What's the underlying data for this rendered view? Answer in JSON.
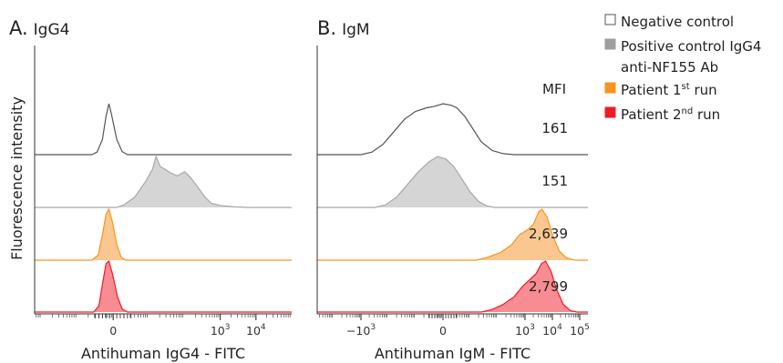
{
  "y_axis_label": "Fluorescence intensity",
  "mfi_header": "MFI",
  "legend": [
    {
      "label": "Negative control",
      "label2": "",
      "color": "#ffffff",
      "stroke": "#555555"
    },
    {
      "label": "Positive control IgG4",
      "label2": "anti-NF155 Ab",
      "color": "#9e9e9e",
      "stroke": "#9e9e9e"
    },
    {
      "label": "Patient 1",
      "sup": "st",
      "tail": " run",
      "label2": "",
      "color": "#f7941d",
      "stroke": "#f7941d"
    },
    {
      "label": "Patient 2",
      "sup": "nd",
      "tail": " run",
      "label2": "",
      "color": "#ee1c25",
      "stroke": "#ee1c25"
    }
  ],
  "chart_data": [
    {
      "type": "area",
      "panel_letter": "A.",
      "panel_title": "IgG4",
      "xlabel": "Antihuman IgG4 - FITC",
      "ylabel": "Fluorescence intensity",
      "xlim": [
        -2.2,
        5.0
      ],
      "ticks": [
        {
          "value": 0,
          "text": "0"
        },
        {
          "value": 3,
          "base": "10",
          "exp": "3"
        },
        {
          "value": 4,
          "base": "10",
          "exp": "4"
        }
      ],
      "series": [
        {
          "name": "Negative control",
          "fill": "none",
          "stroke": "#555555",
          "points": [
            [
              -2.2,
              0
            ],
            [
              -0.6,
              0
            ],
            [
              -0.45,
              0.05
            ],
            [
              -0.3,
              0.3
            ],
            [
              -0.2,
              0.75
            ],
            [
              -0.12,
              1.0
            ],
            [
              -0.05,
              0.8
            ],
            [
              0.1,
              0.3
            ],
            [
              0.25,
              0.06
            ],
            [
              0.4,
              0
            ],
            [
              5.0,
              0
            ]
          ]
        },
        {
          "name": "Positive control IgG4 anti-NF155 Ab",
          "fill": "#d3d3d3",
          "stroke": "#a8a8a8",
          "points": [
            [
              -2.2,
              0
            ],
            [
              0.1,
              0
            ],
            [
              0.3,
              0.05
            ],
            [
              0.6,
              0.2
            ],
            [
              0.9,
              0.5
            ],
            [
              1.1,
              0.75
            ],
            [
              1.2,
              1.0
            ],
            [
              1.32,
              0.8
            ],
            [
              1.45,
              0.75
            ],
            [
              1.6,
              0.68
            ],
            [
              1.8,
              0.62
            ],
            [
              2.0,
              0.7
            ],
            [
              2.15,
              0.6
            ],
            [
              2.35,
              0.42
            ],
            [
              2.55,
              0.22
            ],
            [
              2.75,
              0.08
            ],
            [
              3.0,
              0.04
            ],
            [
              3.4,
              0.01
            ],
            [
              3.8,
              0
            ],
            [
              5.0,
              0
            ]
          ]
        },
        {
          "name": "Patient 1st run",
          "fill": "#fbc48a",
          "stroke": "#f7941d",
          "points": [
            [
              -2.2,
              0
            ],
            [
              -0.6,
              0
            ],
            [
              -0.42,
              0.1
            ],
            [
              -0.3,
              0.5
            ],
            [
              -0.2,
              0.9
            ],
            [
              -0.12,
              1.0
            ],
            [
              -0.02,
              0.75
            ],
            [
              0.1,
              0.3
            ],
            [
              0.22,
              0.06
            ],
            [
              0.35,
              0
            ],
            [
              5.0,
              0
            ]
          ]
        },
        {
          "name": "Patient 2nd run",
          "fill": "#f7868c",
          "stroke": "#ee1c25",
          "points": [
            [
              -2.2,
              0
            ],
            [
              -0.55,
              0
            ],
            [
              -0.4,
              0.12
            ],
            [
              -0.3,
              0.55
            ],
            [
              -0.2,
              0.95
            ],
            [
              -0.12,
              1.0
            ],
            [
              -0.02,
              0.75
            ],
            [
              0.12,
              0.3
            ],
            [
              0.25,
              0.06
            ],
            [
              0.4,
              0
            ],
            [
              5.0,
              0
            ]
          ]
        }
      ]
    },
    {
      "type": "area",
      "panel_letter": "B.",
      "panel_title": "IgM",
      "xlabel": "Antihuman IgM - FITC",
      "ylabel": "",
      "xlim": [
        -4.6,
        5.3
      ],
      "ticks": [
        {
          "value": -3,
          "prefix": "−",
          "base": "10",
          "exp": "3"
        },
        {
          "value": 0,
          "text": "0"
        },
        {
          "value": 3,
          "base": "10",
          "exp": "3"
        },
        {
          "value": 4,
          "base": "10",
          "exp": "4"
        },
        {
          "value": 5,
          "base": "10",
          "exp": "5"
        }
      ],
      "mfi_values": [
        "161",
        "151",
        "2,639",
        "2,799"
      ],
      "series": [
        {
          "name": "Negative control",
          "fill": "none",
          "stroke": "#555555",
          "points": [
            [
              -4.6,
              0
            ],
            [
              -3.0,
              0
            ],
            [
              -2.6,
              0.05
            ],
            [
              -2.2,
              0.2
            ],
            [
              -1.8,
              0.45
            ],
            [
              -1.4,
              0.7
            ],
            [
              -1.0,
              0.85
            ],
            [
              -0.6,
              0.92
            ],
            [
              -0.3,
              0.95
            ],
            [
              0.0,
              1.0
            ],
            [
              0.3,
              0.97
            ],
            [
              0.5,
              0.92
            ],
            [
              0.8,
              0.75
            ],
            [
              1.1,
              0.5
            ],
            [
              1.4,
              0.25
            ],
            [
              1.8,
              0.08
            ],
            [
              2.2,
              0.02
            ],
            [
              2.6,
              0
            ],
            [
              5.3,
              0
            ]
          ]
        },
        {
          "name": "Positive control IgG4 anti-NF155 Ab",
          "fill": "#d3d3d3",
          "stroke": "#a8a8a8",
          "points": [
            [
              -4.6,
              0
            ],
            [
              -2.5,
              0
            ],
            [
              -2.1,
              0.05
            ],
            [
              -1.7,
              0.2
            ],
            [
              -1.3,
              0.45
            ],
            [
              -0.9,
              0.7
            ],
            [
              -0.5,
              0.9
            ],
            [
              -0.2,
              1.0
            ],
            [
              0.1,
              0.95
            ],
            [
              0.4,
              0.8
            ],
            [
              0.7,
              0.55
            ],
            [
              1.0,
              0.3
            ],
            [
              1.3,
              0.12
            ],
            [
              1.6,
              0.03
            ],
            [
              1.9,
              0
            ],
            [
              5.3,
              0
            ]
          ]
        },
        {
          "name": "Patient 1st run",
          "fill": "#fbc48a",
          "stroke": "#f7941d",
          "points": [
            [
              -4.6,
              0
            ],
            [
              1.2,
              0
            ],
            [
              1.6,
              0.05
            ],
            [
              2.1,
              0.15
            ],
            [
              2.5,
              0.3
            ],
            [
              2.8,
              0.5
            ],
            [
              3.1,
              0.6
            ],
            [
              3.3,
              0.7
            ],
            [
              3.5,
              0.95
            ],
            [
              3.62,
              1.0
            ],
            [
              3.8,
              0.85
            ],
            [
              4.0,
              0.5
            ],
            [
              4.25,
              0.18
            ],
            [
              4.5,
              0.05
            ],
            [
              4.8,
              0
            ],
            [
              5.3,
              0
            ]
          ]
        },
        {
          "name": "Patient 2nd run",
          "fill": "#f7868c",
          "stroke": "#ee1c25",
          "points": [
            [
              -4.6,
              0
            ],
            [
              1.4,
              0
            ],
            [
              1.8,
              0.05
            ],
            [
              2.2,
              0.15
            ],
            [
              2.6,
              0.3
            ],
            [
              2.9,
              0.5
            ],
            [
              3.2,
              0.65
            ],
            [
              3.4,
              0.75
            ],
            [
              3.6,
              0.95
            ],
            [
              3.75,
              1.0
            ],
            [
              3.95,
              0.8
            ],
            [
              4.15,
              0.45
            ],
            [
              4.4,
              0.15
            ],
            [
              4.65,
              0.03
            ],
            [
              4.9,
              0
            ],
            [
              5.3,
              0
            ]
          ]
        }
      ]
    }
  ]
}
